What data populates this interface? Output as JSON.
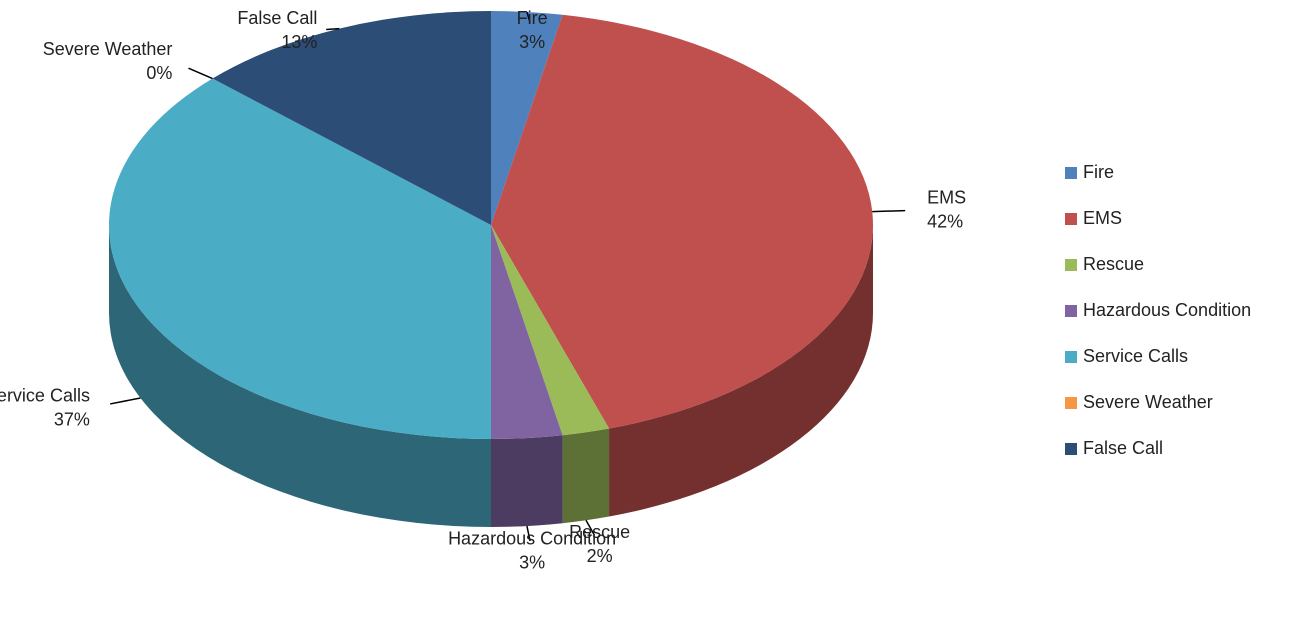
{
  "chart_data": {
    "type": "pie",
    "categories": [
      "Fire",
      "EMS",
      "Rescue",
      "Hazardous Condition",
      "Service Calls",
      "Severe Weather",
      "False Call"
    ],
    "values": [
      3,
      42,
      2,
      3,
      37,
      0,
      13
    ],
    "value_labels": [
      "3%",
      "42%",
      "2%",
      "3%",
      "37%",
      "0%",
      "13%"
    ],
    "colors": [
      "#4f81bd",
      "#c0504d",
      "#9bbb59",
      "#8064a2",
      "#4bacc6",
      "#f79646",
      "#2c4d75"
    ],
    "legend": "right"
  }
}
